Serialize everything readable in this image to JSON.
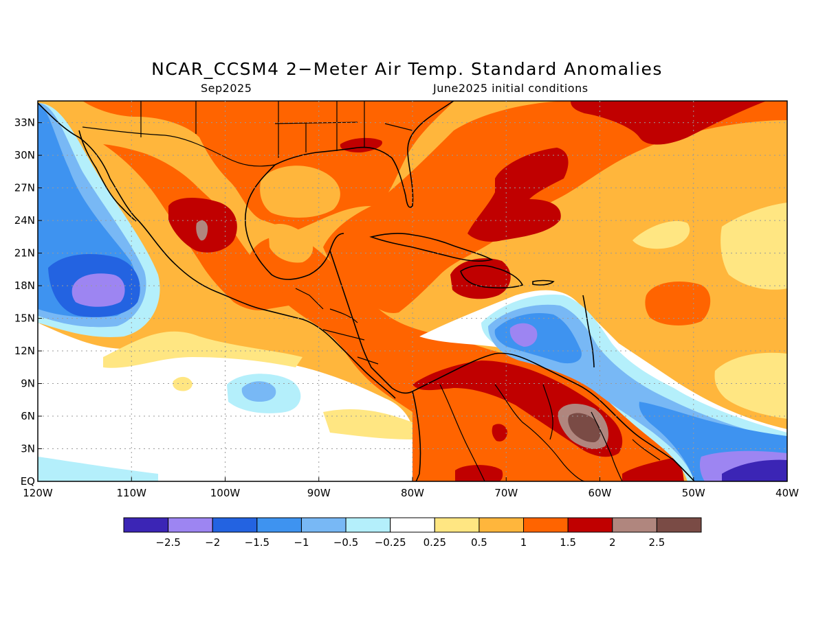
{
  "title": "NCAR_CCSM4 2−Meter Air Temp. Standard Anomalies",
  "subtitle_left": "Sep2025",
  "subtitle_right": "June2025 initial conditions",
  "map": {
    "lon_range": [
      -120,
      -40
    ],
    "lat_range": [
      0,
      35
    ],
    "lat_labels": [
      {
        "lat": 33,
        "label": "33N"
      },
      {
        "lat": 30,
        "label": "30N"
      },
      {
        "lat": 27,
        "label": "27N"
      },
      {
        "lat": 24,
        "label": "24N"
      },
      {
        "lat": 21,
        "label": "21N"
      },
      {
        "lat": 18,
        "label": "18N"
      },
      {
        "lat": 15,
        "label": "15N"
      },
      {
        "lat": 12,
        "label": "12N"
      },
      {
        "lat": 9,
        "label": "9N"
      },
      {
        "lat": 6,
        "label": "6N"
      },
      {
        "lat": 3,
        "label": "3N"
      },
      {
        "lat": 0,
        "label": "EQ"
      }
    ],
    "lon_labels": [
      {
        "lon": -120,
        "label": "120W"
      },
      {
        "lon": -110,
        "label": "110W"
      },
      {
        "lon": -100,
        "label": "100W"
      },
      {
        "lon": -90,
        "label": "90W"
      },
      {
        "lon": -80,
        "label": "80W"
      },
      {
        "lon": -70,
        "label": "70W"
      },
      {
        "lon": -60,
        "label": "60W"
      },
      {
        "lon": -50,
        "label": "50W"
      },
      {
        "lon": -40,
        "label": "40W"
      }
    ],
    "gridlines": "dotted"
  },
  "colorbar": {
    "colors": [
      "#3b25b5",
      "#9d85f2",
      "#2363e1",
      "#3e93f0",
      "#78b8f5",
      "#b4effb",
      "#ffffff",
      "#ffe682",
      "#ffb63c",
      "#ff6400",
      "#c00000",
      "#b0867e",
      "#7a4b45"
    ],
    "labels": [
      "−2.5",
      "−2",
      "−1.5",
      "−1",
      "−0.5",
      "−0.25",
      "0.25",
      "0.5",
      "1",
      "1.5",
      "2",
      "2.5"
    ]
  }
}
